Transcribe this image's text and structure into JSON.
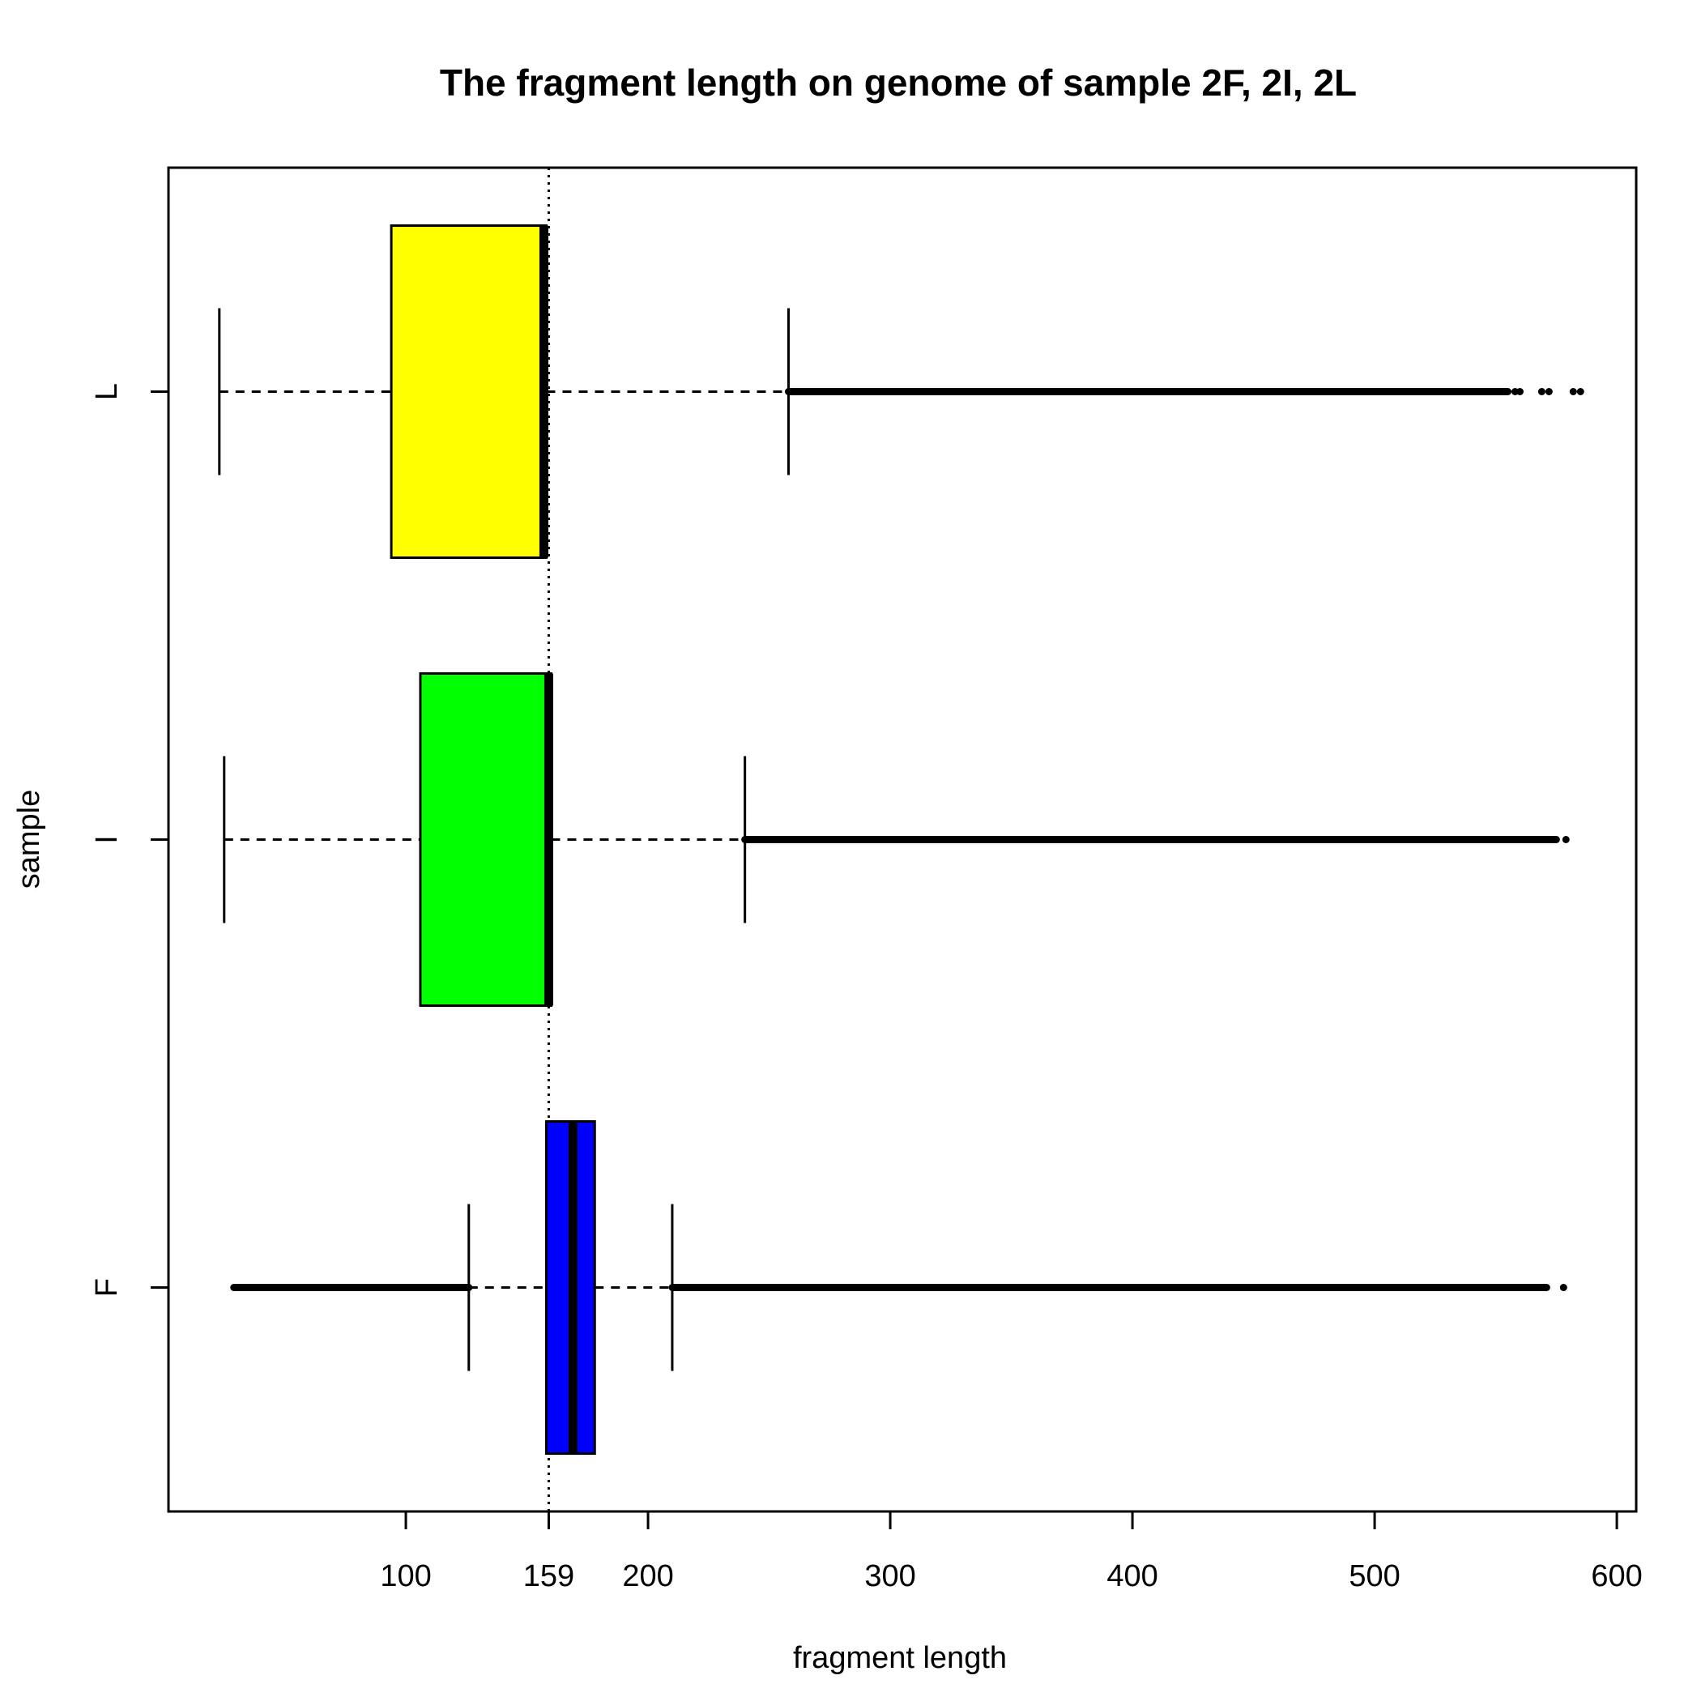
{
  "chart_data": {
    "type": "boxplot",
    "orientation": "horizontal",
    "title": "The fragment length on genome of sample 2F, 2I, 2L",
    "xlabel": "fragment length",
    "ylabel": "sample",
    "xlim": [
      2,
      608
    ],
    "xticks": [
      100,
      159,
      200,
      300,
      400,
      500,
      600
    ],
    "reference_line": {
      "x": 159,
      "style": "dotted"
    },
    "grid": false,
    "legend": "none",
    "series": [
      {
        "name": "F",
        "color": "#0000ff",
        "whisker_low": 126,
        "q1": 158,
        "median": 169,
        "q3": 178,
        "whisker_high": 210,
        "outliers_low_range": [
          29,
          126
        ],
        "outliers_high_range": [
          210,
          571
        ],
        "outlier_points": [
          578
        ]
      },
      {
        "name": "I",
        "color": "#00ff00",
        "whisker_low": 25,
        "q1": 106,
        "median": 159,
        "q3": 160,
        "whisker_high": 240,
        "outliers_high_range": [
          240,
          575
        ],
        "outlier_points": [
          579
        ]
      },
      {
        "name": "L",
        "color": "#ffff00",
        "whisker_low": 23,
        "q1": 94,
        "median": 157,
        "q3": 158,
        "whisker_high": 258,
        "outliers_high_range": [
          258,
          555
        ],
        "outlier_points": [
          558,
          560,
          569,
          572,
          582,
          585
        ]
      }
    ]
  }
}
